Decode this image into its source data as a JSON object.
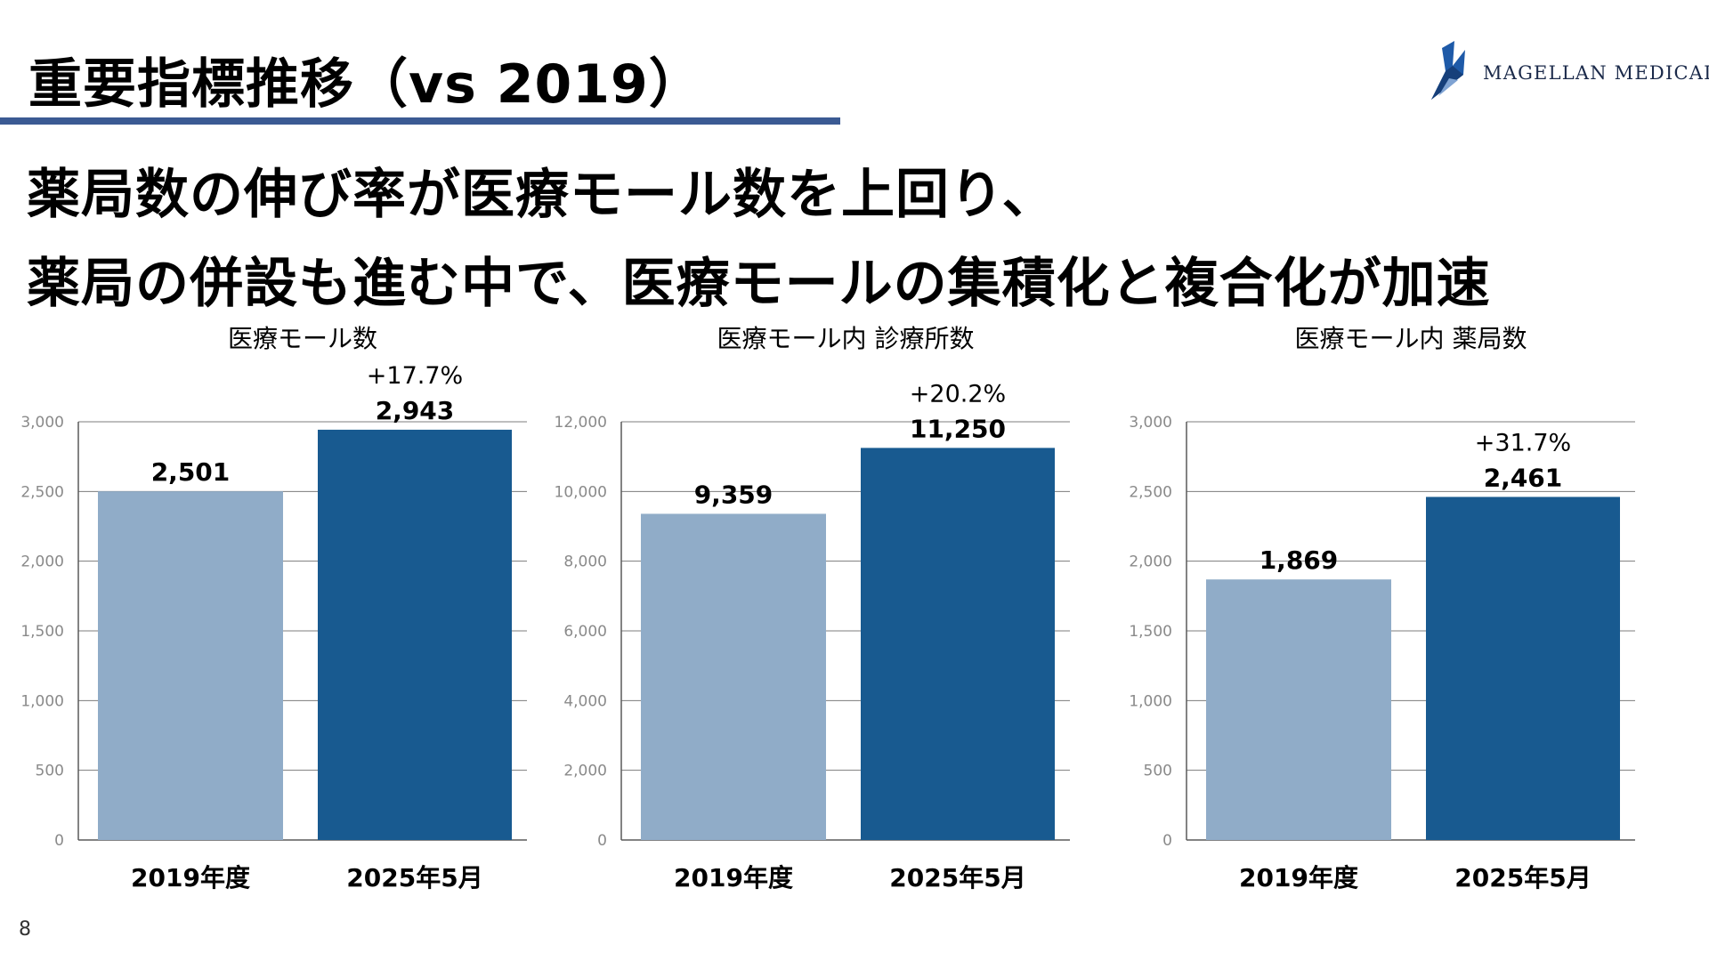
{
  "slide": {
    "title": "重要指標推移（vs 2019）",
    "headline_line1": "薬局数の伸び率が医療モール数を上回り、",
    "headline_line2": "薬局の併設も進む中で、医療モールの集積化と複合化が加速",
    "page_number": "8"
  },
  "logo": {
    "text": "MAGELLAN MEDICAL"
  },
  "colors": {
    "rule": "#3b5a93",
    "bar_2019": "#90acc8",
    "bar_2025": "#185a90",
    "logo_blue": "#1e5aa8"
  },
  "chart_data": [
    {
      "type": "bar",
      "title": "医療モール数",
      "categories": [
        "2019年度",
        "2025年5月"
      ],
      "values": [
        2501,
        2943
      ],
      "value_labels": [
        "2,501",
        "2,943"
      ],
      "growth_label": "+17.7%",
      "ylim": [
        0,
        3000
      ],
      "yticks": [
        0,
        500,
        1000,
        1500,
        2000,
        2500,
        3000
      ],
      "ytick_labels": [
        "0",
        "500",
        "1,000",
        "1,500",
        "2,000",
        "2,500",
        "3,000"
      ],
      "grid": true,
      "legend": "none"
    },
    {
      "type": "bar",
      "title": "医療モール内 診療所数",
      "categories": [
        "2019年度",
        "2025年5月"
      ],
      "values": [
        9359,
        11250
      ],
      "value_labels": [
        "9,359",
        "11,250"
      ],
      "growth_label": "+20.2%",
      "ylim": [
        0,
        12000
      ],
      "yticks": [
        0,
        2000,
        4000,
        6000,
        8000,
        10000,
        12000
      ],
      "ytick_labels": [
        "0",
        "2,000",
        "4,000",
        "6,000",
        "8,000",
        "10,000",
        "12,000"
      ],
      "grid": true,
      "legend": "none"
    },
    {
      "type": "bar",
      "title": "医療モール内 薬局数",
      "categories": [
        "2019年度",
        "2025年5月"
      ],
      "values": [
        1869,
        2461
      ],
      "value_labels": [
        "1,869",
        "2,461"
      ],
      "growth_label": "+31.7%",
      "ylim": [
        0,
        3000
      ],
      "yticks": [
        0,
        500,
        1000,
        1500,
        2000,
        2500,
        3000
      ],
      "ytick_labels": [
        "0",
        "500",
        "1,000",
        "1,500",
        "2,000",
        "2,500",
        "3,000"
      ],
      "grid": true,
      "legend": "none"
    }
  ]
}
